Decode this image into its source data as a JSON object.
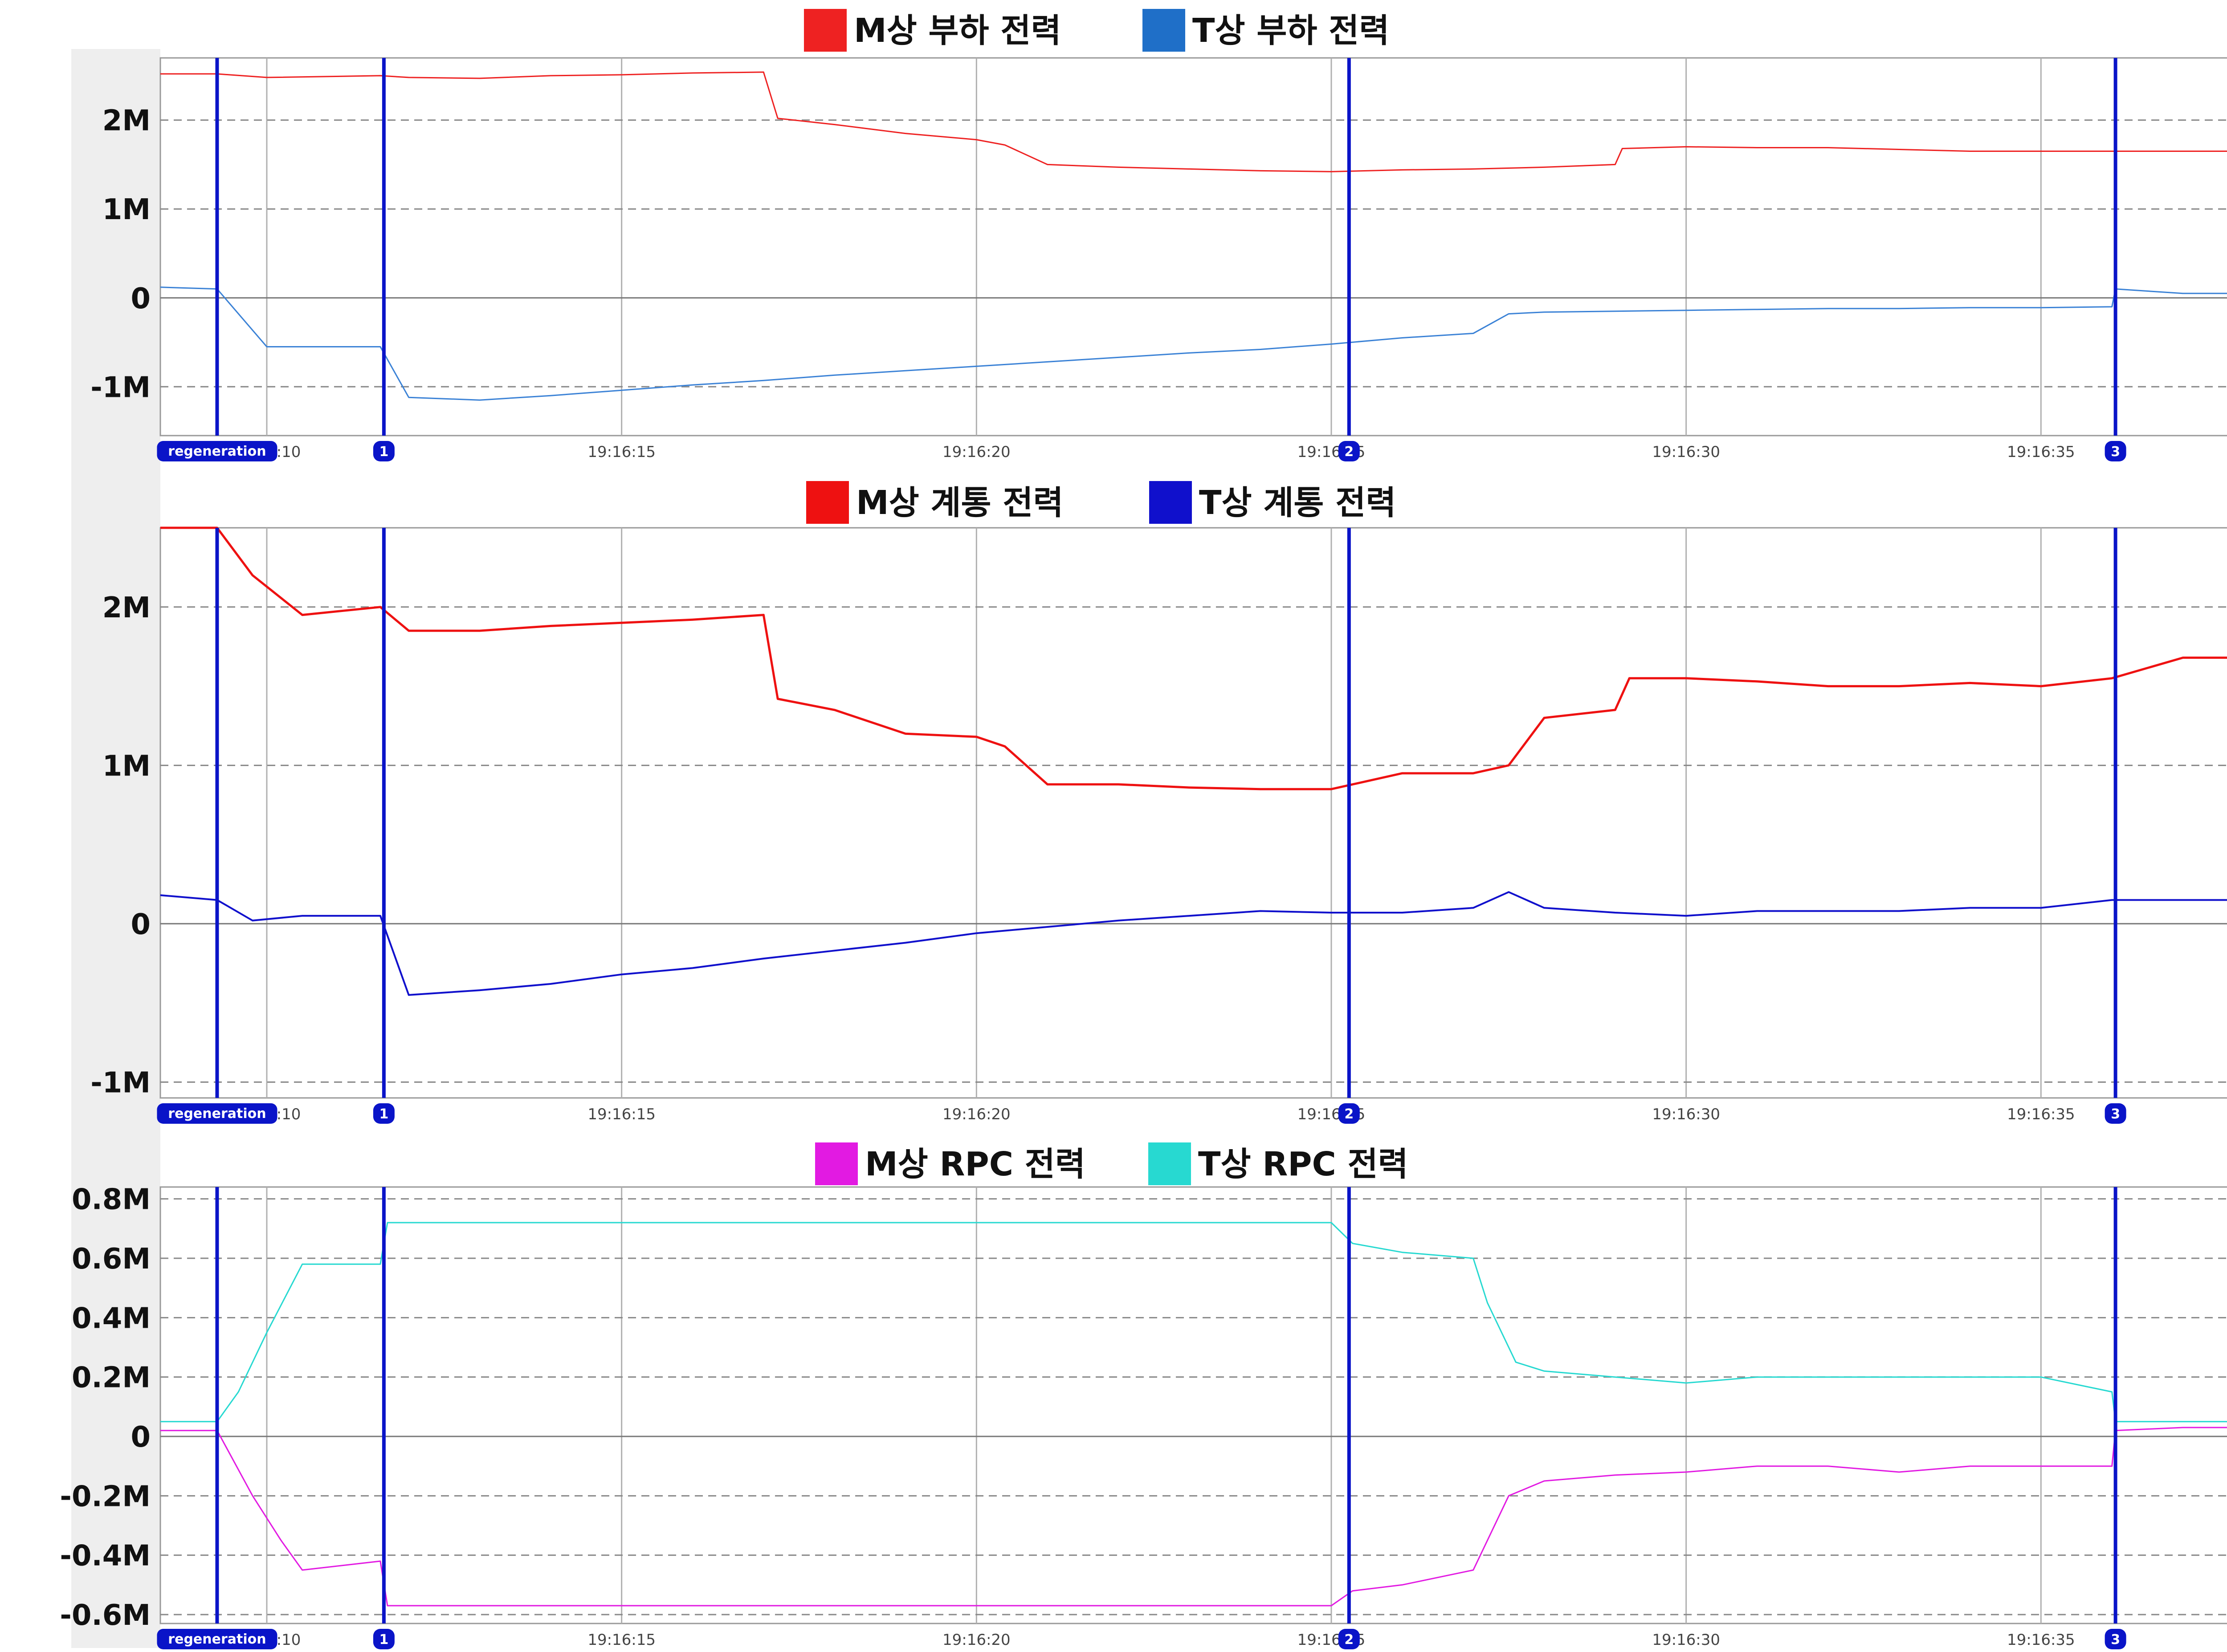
{
  "colors": {
    "red": "#ee2222",
    "blue_legend": "#1f6fc8",
    "blue_dark": "#1010cc",
    "magenta": "#e21ae2",
    "cyan": "#27d9d1",
    "marker": "#0a14c8",
    "play": "#ff9d1c"
  },
  "marker_label": "regeneration",
  "markers": [
    "1",
    "2",
    "3"
  ],
  "chart_data": [
    {
      "type": "line",
      "legend_placement": "top-center",
      "grid": true,
      "xlim": [
        8.5,
        38.5
      ],
      "xticks": [
        "19:16:10",
        "19:16:15",
        "19:16:20",
        "19:16:25",
        "19:16:30",
        "19:16:35"
      ],
      "ylim": [
        -1.55,
        2.7
      ],
      "yticks": [
        {
          "v": 2,
          "label": "2M"
        },
        {
          "v": 1,
          "label": "1M"
        },
        {
          "v": 0,
          "label": "0"
        },
        {
          "v": -1,
          "label": "-1M"
        }
      ],
      "markers_x": [
        9.3,
        11.65,
        25.25,
        36.05
      ],
      "series": [
        {
          "name": "M상 부하 전력",
          "color": "#ee2222",
          "lineWidth": 3,
          "x": [
            8.5,
            9.3,
            10,
            11.6,
            12,
            13,
            14,
            15,
            16,
            17,
            17.2,
            18,
            19,
            20,
            20.4,
            21,
            22,
            23,
            24,
            25,
            26,
            27,
            28,
            29,
            29.1,
            30,
            31,
            32,
            33,
            34,
            35,
            36,
            37,
            38.5
          ],
          "y": [
            2.52,
            2.52,
            2.48,
            2.5,
            2.48,
            2.47,
            2.5,
            2.51,
            2.53,
            2.54,
            2.02,
            1.95,
            1.85,
            1.78,
            1.72,
            1.5,
            1.47,
            1.45,
            1.43,
            1.42,
            1.44,
            1.45,
            1.47,
            1.5,
            1.68,
            1.7,
            1.69,
            1.69,
            1.67,
            1.65,
            1.65,
            1.65,
            1.65,
            1.65
          ]
        },
        {
          "name": "T상 부하 전력",
          "color": "#3b82d6",
          "lineWidth": 3,
          "x": [
            8.5,
            9.3,
            10,
            11.6,
            12,
            13,
            14,
            15,
            16,
            17,
            18,
            19,
            20,
            21,
            22,
            23,
            24,
            25,
            26,
            27,
            27.5,
            28,
            29,
            30,
            31,
            32,
            33,
            34,
            35,
            36,
            36.05,
            37,
            38.5
          ],
          "y": [
            0.12,
            0.1,
            -0.55,
            -0.55,
            -1.12,
            -1.15,
            -1.1,
            -1.04,
            -0.98,
            -0.93,
            -0.87,
            -0.82,
            -0.77,
            -0.72,
            -0.67,
            -0.62,
            -0.58,
            -0.52,
            -0.45,
            -0.4,
            -0.18,
            -0.16,
            -0.15,
            -0.14,
            -0.13,
            -0.12,
            -0.12,
            -0.11,
            -0.11,
            -0.1,
            0.1,
            0.05,
            0.05
          ]
        }
      ]
    },
    {
      "type": "line",
      "legend_placement": "top-center",
      "grid": true,
      "xlim": [
        8.5,
        38.5
      ],
      "xticks": [
        "19:16:10",
        "19:16:15",
        "19:16:20",
        "19:16:25",
        "19:16:30",
        "19:16:35"
      ],
      "ylim": [
        -1.1,
        2.5
      ],
      "yticks": [
        {
          "v": 2,
          "label": "2M"
        },
        {
          "v": 1,
          "label": "1M"
        },
        {
          "v": 0,
          "label": "0"
        },
        {
          "v": -1,
          "label": "-1M"
        }
      ],
      "markers_x": [
        9.3,
        11.65,
        25.25,
        36.05
      ],
      "series": [
        {
          "name": "M상 계통 전력",
          "color": "#ee1111",
          "lineWidth": 5,
          "x": [
            8.5,
            9.3,
            9.8,
            10.5,
            11.6,
            12,
            13,
            14,
            15,
            16,
            17,
            17.2,
            18,
            19,
            20,
            20.4,
            21,
            22,
            23,
            24,
            25,
            26,
            27,
            27.5,
            28,
            29,
            29.2,
            30,
            31,
            32,
            33,
            34,
            35,
            36,
            37,
            38.5
          ],
          "y": [
            2.5,
            2.5,
            2.2,
            1.95,
            2.0,
            1.85,
            1.85,
            1.88,
            1.9,
            1.92,
            1.95,
            1.42,
            1.35,
            1.2,
            1.18,
            1.12,
            0.88,
            0.88,
            0.86,
            0.85,
            0.85,
            0.95,
            0.95,
            1.0,
            1.3,
            1.35,
            1.55,
            1.55,
            1.53,
            1.5,
            1.5,
            1.52,
            1.5,
            1.55,
            1.68,
            1.68
          ]
        },
        {
          "name": "T상 계통 전력",
          "color": "#1010cc",
          "lineWidth": 4,
          "x": [
            8.5,
            9.3,
            9.8,
            10.5,
            11.6,
            12,
            13,
            14,
            15,
            16,
            17,
            18,
            19,
            20,
            21,
            22,
            23,
            24,
            25,
            26,
            27,
            27.5,
            28,
            29,
            30,
            31,
            32,
            33,
            34,
            35,
            36,
            37,
            38.5
          ],
          "y": [
            0.18,
            0.15,
            0.02,
            0.05,
            0.05,
            -0.45,
            -0.42,
            -0.38,
            -0.32,
            -0.28,
            -0.22,
            -0.17,
            -0.12,
            -0.06,
            -0.02,
            0.02,
            0.05,
            0.08,
            0.07,
            0.07,
            0.1,
            0.2,
            0.1,
            0.07,
            0.05,
            0.08,
            0.08,
            0.08,
            0.1,
            0.1,
            0.15,
            0.15,
            0.15
          ]
        }
      ]
    },
    {
      "type": "line",
      "legend_placement": "top-center",
      "grid": true,
      "xlim": [
        8.5,
        38.5
      ],
      "xticks": [
        "19:16:10",
        "19:16:15",
        "19:16:20",
        "19:16:25",
        "19:16:30",
        "19:16:35"
      ],
      "ylim": [
        -0.63,
        0.84
      ],
      "yticks": [
        {
          "v": 0.8,
          "label": "0.8M"
        },
        {
          "v": 0.6,
          "label": "0.6M"
        },
        {
          "v": 0.4,
          "label": "0.4M"
        },
        {
          "v": 0.2,
          "label": "0.2M"
        },
        {
          "v": 0,
          "label": "0"
        },
        {
          "v": -0.2,
          "label": "-0.2M"
        },
        {
          "v": -0.4,
          "label": "-0.4M"
        },
        {
          "v": -0.6,
          "label": "-0.6M"
        }
      ],
      "markers_x": [
        9.3,
        11.65,
        25.25,
        36.05
      ],
      "series": [
        {
          "name": "M상 RPC 전력",
          "color": "#e21ae2",
          "lineWidth": 3,
          "x": [
            8.5,
            9.3,
            9.8,
            10.2,
            10.5,
            11.6,
            11.7,
            13,
            15,
            17,
            19,
            21,
            23,
            25,
            25.3,
            26,
            27,
            27.5,
            28,
            29,
            30,
            31,
            32,
            33,
            34,
            35,
            36,
            36.05,
            37,
            38.5
          ],
          "y": [
            0.02,
            0.02,
            -0.2,
            -0.35,
            -0.45,
            -0.42,
            -0.57,
            -0.57,
            -0.57,
            -0.57,
            -0.57,
            -0.57,
            -0.57,
            -0.57,
            -0.52,
            -0.5,
            -0.45,
            -0.2,
            -0.15,
            -0.13,
            -0.12,
            -0.1,
            -0.1,
            -0.12,
            -0.1,
            -0.1,
            -0.1,
            0.02,
            0.03,
            0.03
          ]
        },
        {
          "name": "T상 RPC 전력",
          "color": "#27d9d1",
          "lineWidth": 3,
          "x": [
            8.5,
            9.3,
            9.6,
            10,
            10.5,
            11.6,
            11.7,
            13,
            15,
            17,
            19,
            21,
            23,
            25,
            25.3,
            26,
            27,
            27.2,
            27.6,
            28,
            29,
            30,
            31,
            32,
            33,
            34,
            35,
            36,
            36.05,
            37,
            38.5
          ],
          "y": [
            0.05,
            0.05,
            0.15,
            0.35,
            0.58,
            0.58,
            0.72,
            0.72,
            0.72,
            0.72,
            0.72,
            0.72,
            0.72,
            0.72,
            0.65,
            0.62,
            0.6,
            0.45,
            0.25,
            0.22,
            0.2,
            0.18,
            0.2,
            0.2,
            0.2,
            0.2,
            0.2,
            0.15,
            0.05,
            0.05,
            0.05
          ]
        }
      ]
    }
  ]
}
